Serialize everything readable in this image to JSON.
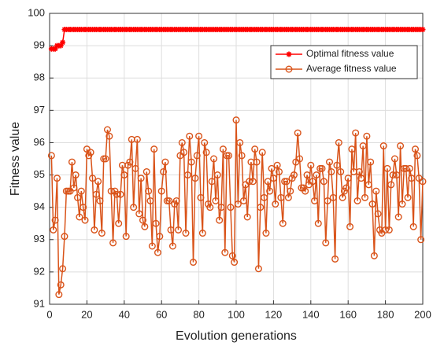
{
  "chart_data": {
    "type": "line",
    "xlabel": "Evolution generations",
    "ylabel": "Fitness value",
    "x": [
      1,
      2,
      3,
      4,
      5,
      6,
      7,
      8,
      9,
      10,
      11,
      12,
      13,
      14,
      15,
      16,
      17,
      18,
      19,
      20,
      21,
      22,
      23,
      24,
      25,
      26,
      27,
      28,
      29,
      30,
      31,
      32,
      33,
      34,
      35,
      36,
      37,
      38,
      39,
      40,
      41,
      42,
      43,
      44,
      45,
      46,
      47,
      48,
      49,
      50,
      51,
      52,
      53,
      54,
      55,
      56,
      57,
      58,
      59,
      60,
      61,
      62,
      63,
      64,
      65,
      66,
      67,
      68,
      69,
      70,
      71,
      72,
      73,
      74,
      75,
      76,
      77,
      78,
      79,
      80,
      81,
      82,
      83,
      84,
      85,
      86,
      87,
      88,
      89,
      90,
      91,
      92,
      93,
      94,
      95,
      96,
      97,
      98,
      99,
      100,
      101,
      102,
      103,
      104,
      105,
      106,
      107,
      108,
      109,
      110,
      111,
      112,
      113,
      114,
      115,
      116,
      117,
      118,
      119,
      120,
      121,
      122,
      123,
      124,
      125,
      126,
      127,
      128,
      129,
      130,
      131,
      132,
      133,
      134,
      135,
      136,
      137,
      138,
      139,
      140,
      141,
      142,
      143,
      144,
      145,
      146,
      147,
      148,
      149,
      150,
      151,
      152,
      153,
      154,
      155,
      156,
      157,
      158,
      159,
      160,
      161,
      162,
      163,
      164,
      165,
      166,
      167,
      168,
      169,
      170,
      171,
      172,
      173,
      174,
      175,
      176,
      177,
      178,
      179,
      180,
      181,
      182,
      183,
      184,
      185,
      186,
      187,
      188,
      189,
      190,
      191,
      192,
      193,
      194,
      195,
      196,
      197,
      198,
      199,
      200
    ],
    "series": [
      {
        "name": "Optimal fitness value",
        "color": "#ff0000",
        "marker": "star",
        "values": [
          98.9,
          98.9,
          98.9,
          99.0,
          99.0,
          99.0,
          99.1,
          99.5,
          99.5,
          99.5,
          99.5,
          99.5,
          99.5,
          99.5,
          99.5,
          99.5,
          99.5,
          99.5,
          99.5,
          99.5,
          99.5,
          99.5,
          99.5,
          99.5,
          99.5,
          99.5,
          99.5,
          99.5,
          99.5,
          99.5,
          99.5,
          99.5,
          99.5,
          99.5,
          99.5,
          99.5,
          99.5,
          99.5,
          99.5,
          99.5,
          99.5,
          99.5,
          99.5,
          99.5,
          99.5,
          99.5,
          99.5,
          99.5,
          99.5,
          99.5,
          99.5,
          99.5,
          99.5,
          99.5,
          99.5,
          99.5,
          99.5,
          99.5,
          99.5,
          99.5,
          99.5,
          99.5,
          99.5,
          99.5,
          99.5,
          99.5,
          99.5,
          99.5,
          99.5,
          99.5,
          99.5,
          99.5,
          99.5,
          99.5,
          99.5,
          99.5,
          99.5,
          99.5,
          99.5,
          99.5,
          99.5,
          99.5,
          99.5,
          99.5,
          99.5,
          99.5,
          99.5,
          99.5,
          99.5,
          99.5,
          99.5,
          99.5,
          99.5,
          99.5,
          99.5,
          99.5,
          99.5,
          99.5,
          99.5,
          99.5,
          99.5,
          99.5,
          99.5,
          99.5,
          99.5,
          99.5,
          99.5,
          99.5,
          99.5,
          99.5,
          99.5,
          99.5,
          99.5,
          99.5,
          99.5,
          99.5,
          99.5,
          99.5,
          99.5,
          99.5,
          99.5,
          99.5,
          99.5,
          99.5,
          99.5,
          99.5,
          99.5,
          99.5,
          99.5,
          99.5,
          99.5,
          99.5,
          99.5,
          99.5,
          99.5,
          99.5,
          99.5,
          99.5,
          99.5,
          99.5,
          99.5,
          99.5,
          99.5,
          99.5,
          99.5,
          99.5,
          99.5,
          99.5,
          99.5,
          99.5,
          99.5,
          99.5,
          99.5,
          99.5,
          99.5,
          99.5,
          99.5,
          99.5,
          99.5,
          99.5,
          99.5,
          99.5,
          99.5,
          99.5,
          99.5,
          99.5,
          99.5,
          99.5,
          99.5,
          99.5,
          99.5,
          99.5,
          99.5,
          99.5,
          99.5,
          99.5,
          99.5,
          99.5,
          99.5,
          99.5,
          99.5,
          99.5,
          99.5,
          99.5,
          99.5,
          99.5,
          99.5,
          99.5,
          99.5,
          99.5,
          99.5,
          99.5,
          99.5,
          99.5,
          99.5,
          99.5,
          99.5,
          99.5,
          99.5,
          99.5
        ]
      },
      {
        "name": "Average fitness value",
        "color": "#d95319",
        "marker": "circle",
        "values": [
          95.6,
          93.3,
          93.6,
          94.9,
          91.3,
          91.6,
          92.1,
          93.1,
          94.5,
          94.5,
          94.5,
          95.4,
          94.6,
          95.0,
          94.3,
          93.7,
          94.5,
          94.0,
          93.6,
          95.8,
          95.6,
          95.7,
          94.9,
          93.3,
          94.4,
          94.8,
          94.2,
          93.2,
          95.5,
          95.5,
          96.4,
          96.2,
          94.5,
          92.9,
          94.5,
          94.4,
          93.5,
          94.4,
          95.3,
          95.0,
          93.1,
          95.3,
          95.4,
          96.1,
          94.0,
          95.2,
          96.1,
          93.8,
          94.9,
          93.6,
          93.4,
          95.1,
          94.5,
          94.2,
          92.8,
          95.8,
          93.5,
          92.6,
          93.1,
          94.5,
          95.1,
          95.4,
          94.2,
          94.2,
          93.3,
          92.8,
          94.1,
          94.2,
          93.3,
          95.6,
          96.0,
          95.7,
          93.2,
          95.0,
          96.2,
          95.4,
          92.3,
          94.9,
          95.6,
          96.2,
          94.3,
          93.2,
          96.0,
          95.7,
          94.1,
          94.0,
          94.8,
          95.5,
          94.2,
          95.0,
          93.6,
          94.0,
          95.8,
          92.6,
          95.6,
          95.6,
          94.0,
          92.5,
          92.3,
          96.7,
          94.1,
          96.0,
          95.6,
          94.2,
          94.7,
          93.7,
          94.8,
          95.4,
          94.8,
          95.8,
          95.4,
          92.1,
          94.0,
          95.7,
          94.3,
          93.2,
          94.8,
          94.5,
          95.2,
          94.9,
          94.1,
          95.3,
          95.1,
          94.3,
          93.5,
          94.8,
          94.8,
          94.3,
          94.5,
          94.9,
          95.0,
          95.4,
          96.3,
          95.5,
          94.6,
          94.6,
          94.5,
          95.0,
          94.7,
          95.3,
          94.8,
          94.2,
          95.0,
          93.5,
          95.2,
          95.2,
          94.8,
          92.9,
          94.2,
          95.4,
          95.1,
          94.3,
          92.4,
          95.3,
          96.0,
          95.1,
          94.3,
          94.5,
          94.6,
          94.9,
          93.4,
          95.8,
          95.1,
          96.3,
          94.2,
          95.1,
          94.9,
          95.9,
          94.3,
          96.2,
          94.7,
          95.4,
          94.1,
          92.5,
          94.5,
          93.8,
          93.3,
          93.2,
          95.9,
          93.3,
          95.2,
          93.3,
          94.7,
          95.0,
          95.5,
          95.0,
          93.7,
          95.9,
          94.1,
          95.2,
          95.2,
          94.3,
          95.2,
          94.9,
          93.4,
          95.8,
          95.6,
          94.9,
          93.0,
          94.8
        ]
      }
    ],
    "xlim": [
      0,
      200
    ],
    "xticks": [
      0,
      20,
      40,
      60,
      80,
      100,
      120,
      140,
      160,
      180,
      200
    ],
    "ylim": [
      91,
      100
    ],
    "yticks": [
      91,
      92,
      93,
      94,
      95,
      96,
      97,
      98,
      99,
      100
    ],
    "grid": true,
    "legend": "upper right"
  }
}
